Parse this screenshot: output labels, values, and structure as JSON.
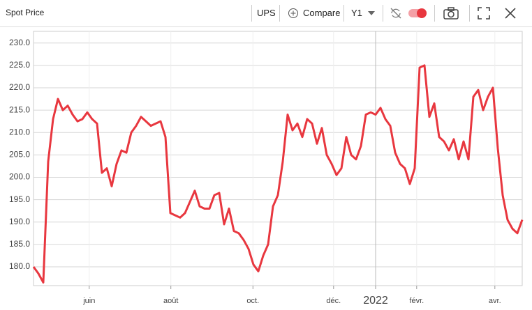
{
  "toolbar": {
    "title": "Spot Price",
    "ticker": "UPS",
    "compare": "Compare",
    "period": "Y1"
  },
  "chart_data": {
    "type": "line",
    "series": [
      {
        "name": "UPS",
        "color": "#e8373f",
        "values": [
          180,
          178.5,
          176.5,
          203.5,
          213,
          217.5,
          215,
          216,
          214,
          212.5,
          213,
          214.5,
          213,
          212,
          201,
          202,
          198,
          203,
          206,
          205.5,
          210,
          211.5,
          213.5,
          212.5,
          211.5,
          212,
          212.5,
          209,
          192,
          191.5,
          191,
          192,
          194.5,
          197,
          193.5,
          193,
          193,
          196,
          196.5,
          189.5,
          193,
          188,
          187.5,
          186,
          184,
          180.5,
          179,
          182.5,
          185,
          193.5,
          196,
          203.5,
          214,
          210.5,
          212,
          209,
          213,
          212,
          207.5,
          211,
          205,
          203,
          200.5,
          202,
          209,
          205,
          204,
          207,
          214,
          214.5,
          214,
          215.5,
          213,
          211.5,
          205.5,
          203,
          202,
          198.5,
          202,
          224.5,
          225,
          213.5,
          216.5,
          209,
          208,
          206,
          208.5,
          204,
          208,
          204,
          218,
          219.5,
          215,
          218,
          220,
          206.5,
          196,
          190.5,
          188.5,
          187.5,
          190.5
        ]
      }
    ],
    "xlim": [
      0,
      100
    ],
    "xticks": [
      {
        "value": 11.4,
        "label": "juin"
      },
      {
        "value": 28.1,
        "label": "août"
      },
      {
        "value": 44.9,
        "label": "oct."
      },
      {
        "value": 61.4,
        "label": "déc."
      },
      {
        "value": 70,
        "label": "2022"
      },
      {
        "value": 78.4,
        "label": "févr."
      },
      {
        "value": 94.4,
        "label": "avr."
      }
    ],
    "ylim": [
      175.8,
      232.6
    ],
    "yticks": [
      {
        "value": 180,
        "label": "180.0"
      },
      {
        "value": 185,
        "label": "185.0"
      },
      {
        "value": 190,
        "label": "190.0"
      },
      {
        "value": 195,
        "label": "195.0"
      },
      {
        "value": 200,
        "label": "200.0"
      },
      {
        "value": 205,
        "label": "205.0"
      },
      {
        "value": 210,
        "label": "210.0"
      },
      {
        "value": 215,
        "label": "215.0"
      },
      {
        "value": 220,
        "label": "220.0"
      },
      {
        "value": 225,
        "label": "225.0"
      },
      {
        "value": 230,
        "label": "230.0"
      }
    ],
    "grid": true
  }
}
